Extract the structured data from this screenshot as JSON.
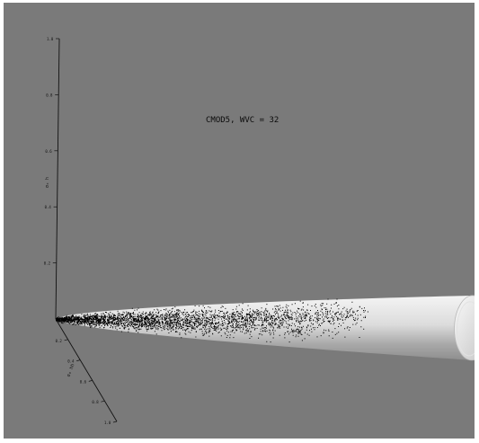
{
  "chart_data": {
    "type": "scatter",
    "title": "CMOD5, WVC = 32",
    "xlabel": "σ₀ vv",
    "ylabel": "σ₀ hh",
    "zlabel": "σ₀ h",
    "xlim": [
      0,
      1.0
    ],
    "ylim": [
      0,
      1.0
    ],
    "zlim": [
      0,
      1.0
    ],
    "x_ticks": [
      "0.2",
      "0.4",
      "0.6",
      "0.8",
      "1.0"
    ],
    "y_ticks": [
      "0.2",
      "0.4",
      "0.6",
      "0.8",
      "1.0"
    ],
    "z_ticks": [
      "0.2",
      "0.4",
      "0.6",
      "0.8",
      "1.0"
    ],
    "series": [
      {
        "kind": "point-cloud",
        "color": "#000000",
        "center_line": [
          [
            0.0,
            0.0,
            0.0
          ],
          [
            0.25,
            0.22,
            0.06
          ],
          [
            0.5,
            0.45,
            0.12
          ],
          [
            0.75,
            0.68,
            0.18
          ]
        ]
      },
      {
        "kind": "cone-surface",
        "color": "#e6e6e6",
        "center_line": [
          [
            0.0,
            0.0,
            0.0
          ],
          [
            1.0,
            0.92,
            0.25
          ]
        ]
      }
    ],
    "grid": false,
    "legend": "none",
    "background_color": "#7a7a7a"
  }
}
